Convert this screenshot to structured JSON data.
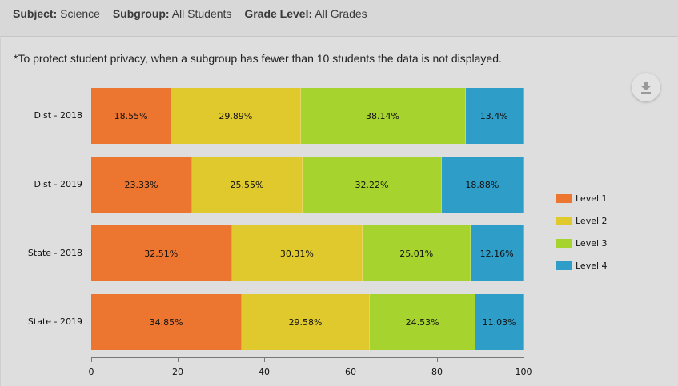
{
  "header": {
    "filters": [
      {
        "label": "Subject:",
        "value": "Science"
      },
      {
        "label": "Subgroup:",
        "value": "All Students"
      },
      {
        "label": "Grade Level:",
        "value": "All Grades"
      }
    ]
  },
  "note": "*To protect student privacy, when a subgroup has fewer than 10 students the data is not displayed.",
  "download_icon": "download-icon",
  "colors": {
    "level1": "#ec7630",
    "level2": "#e0c92c",
    "level3": "#a6d32e",
    "level4": "#2e9dc8"
  },
  "chart_data": {
    "type": "bar",
    "orientation": "horizontal",
    "stacked": true,
    "title": "",
    "xlabel": "",
    "ylabel": "",
    "xlim": [
      0,
      100
    ],
    "xticks": [
      0,
      20,
      40,
      60,
      80,
      100
    ],
    "categories": [
      "Dist - 2018",
      "Dist - 2019",
      "State - 2018",
      "State - 2019"
    ],
    "series": [
      {
        "name": "Level 1",
        "color": "#ec7630",
        "values": [
          18.55,
          23.33,
          32.51,
          34.85
        ],
        "labels": [
          "18.55%",
          "23.33%",
          "32.51%",
          "34.85%"
        ]
      },
      {
        "name": "Level 2",
        "color": "#e0c92c",
        "values": [
          29.89,
          25.55,
          30.31,
          29.58
        ],
        "labels": [
          "29.89%",
          "25.55%",
          "30.31%",
          "29.58%"
        ]
      },
      {
        "name": "Level 3",
        "color": "#a6d32e",
        "values": [
          38.14,
          32.22,
          25.01,
          24.53
        ],
        "labels": [
          "38.14%",
          "32.22%",
          "25.01%",
          "24.53%"
        ]
      },
      {
        "name": "Level 4",
        "color": "#2e9dc8",
        "values": [
          13.4,
          18.88,
          12.16,
          11.03
        ],
        "labels": [
          "13.4%",
          "18.88%",
          "12.16%",
          "11.03%"
        ]
      }
    ],
    "legend": {
      "position": "right",
      "entries": [
        "Level 1",
        "Level 2",
        "Level 3",
        "Level 4"
      ]
    },
    "grid": false
  }
}
